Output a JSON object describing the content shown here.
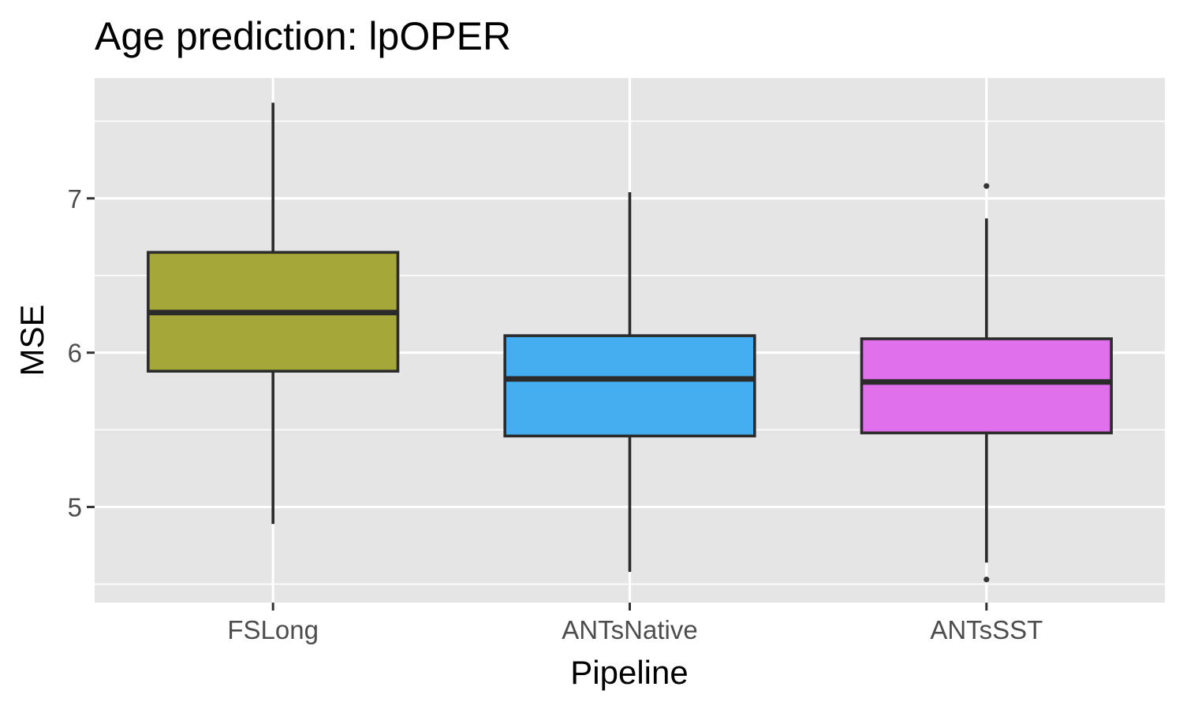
{
  "chart_data": {
    "type": "box",
    "title": "Age prediction: lpOPER",
    "xlabel": "Pipeline",
    "ylabel": "MSE",
    "ylim": [
      4.38,
      7.78
    ],
    "yticks": [
      5,
      6,
      7
    ],
    "yticks_labels": [
      "5",
      "6",
      "7"
    ],
    "grid": true,
    "background_color": "#e5e5e5",
    "categories": [
      "FSLong",
      "ANTsNative",
      "ANTsSST"
    ],
    "series": [
      {
        "category": "FSLong",
        "whisker_low": 4.89,
        "q1": 5.88,
        "median": 6.26,
        "q3": 6.65,
        "whisker_high": 7.62,
        "outliers": [],
        "color": "#a5a838"
      },
      {
        "category": "ANTsNative",
        "whisker_low": 4.58,
        "q1": 5.46,
        "median": 5.83,
        "q3": 6.11,
        "whisker_high": 7.04,
        "outliers": [],
        "color": "#45aef0"
      },
      {
        "category": "ANTsSST",
        "whisker_low": 4.64,
        "q1": 5.48,
        "median": 5.81,
        "q3": 6.09,
        "whisker_high": 6.87,
        "outliers": [
          7.08,
          4.53
        ],
        "color": "#e070ec"
      }
    ]
  }
}
